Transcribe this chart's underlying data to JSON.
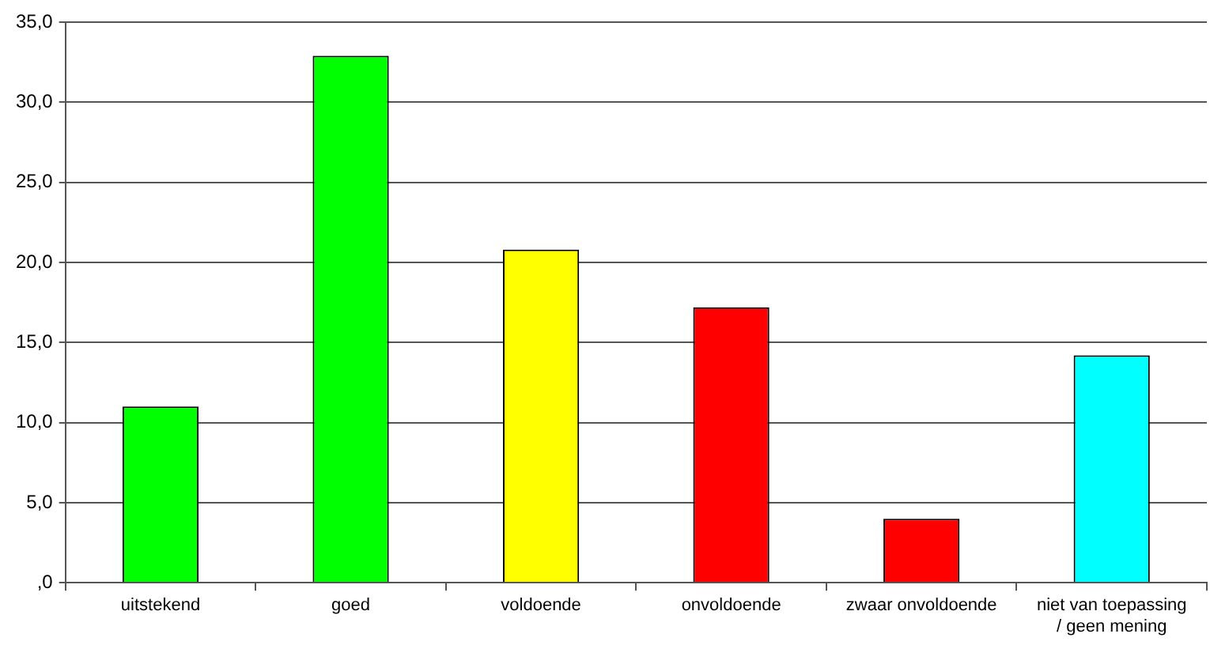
{
  "chart_data": {
    "type": "bar",
    "categories": [
      "uitstekend",
      "goed",
      "voldoende",
      "onvoldoende",
      "zwaar onvoldoende",
      "niet van toepassing / geen mening"
    ],
    "values": [
      11.0,
      32.9,
      20.8,
      17.2,
      4.0,
      14.2
    ],
    "colors": [
      "#00ff00",
      "#00ff00",
      "#ffff00",
      "#ff0000",
      "#ff0000",
      "#00ffff"
    ],
    "ylim": [
      0,
      35
    ],
    "yticks": [
      {
        "value": 0,
        "label": ",0"
      },
      {
        "value": 5,
        "label": "5,0"
      },
      {
        "value": 10,
        "label": "10,0"
      },
      {
        "value": 15,
        "label": "15,0"
      },
      {
        "value": 20,
        "label": "20,0"
      },
      {
        "value": 25,
        "label": "25,0"
      },
      {
        "value": 30,
        "label": "30,0"
      },
      {
        "value": 35,
        "label": "35,0"
      }
    ],
    "grid": "y",
    "legend": false
  }
}
